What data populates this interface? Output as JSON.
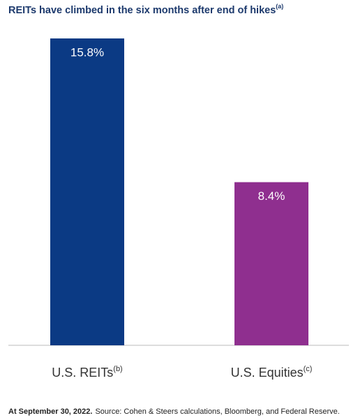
{
  "chart_data": {
    "type": "bar",
    "title": "REITs have climbed in the six months after end of hikes",
    "title_superscript": "(a)",
    "categories": [
      "U.S. REITs",
      "U.S. Equities"
    ],
    "category_superscripts": [
      "(b)",
      "(c)"
    ],
    "values": [
      15.8,
      8.4
    ],
    "value_labels": [
      "15.8%",
      "8.4%"
    ],
    "colors": [
      "#0b3a84",
      "#8f2f8f"
    ],
    "footnote_bold": "At September 30, 2022.",
    "footnote": "Source: Cohen & Steers calculations, Bloomberg, and Federal Reserve."
  }
}
